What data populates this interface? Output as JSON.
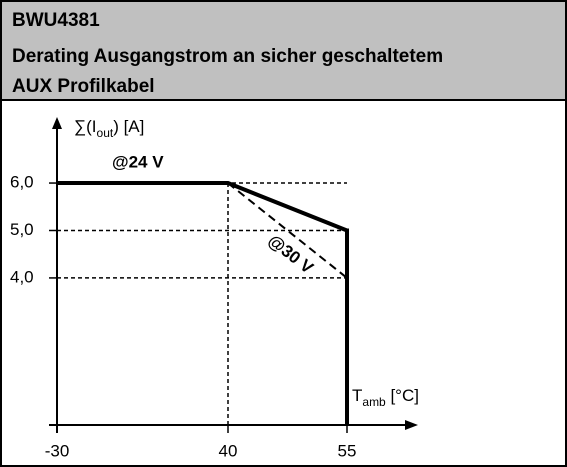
{
  "chart_data": {
    "type": "line",
    "title": [
      "BWU4381",
      "Derating Ausgangstrom an sicher geschaltetem",
      "AUX Profilkabel"
    ],
    "ylabel": {
      "main": "∑(I",
      "sub": "out",
      "rest": ") [A]"
    },
    "xlabel": {
      "main": "T",
      "sub": "amb",
      "rest": " [°C]"
    },
    "categories": [
      "-30",
      "40",
      "55"
    ],
    "series": [
      {
        "name": "@24 V",
        "color": "#000000",
        "values": [
          6,
          6,
          5
        ]
      },
      {
        "name": "@30 V",
        "color": "#000000",
        "values": [
          null,
          6,
          4
        ]
      }
    ],
    "ylim": [
      0.9,
      7.35
    ],
    "yticks": [
      {
        "value": 6,
        "label": "6,0"
      },
      {
        "value": 5,
        "label": "5,0"
      },
      {
        "value": 4,
        "label": "4,0"
      }
    ],
    "grid": true
  }
}
